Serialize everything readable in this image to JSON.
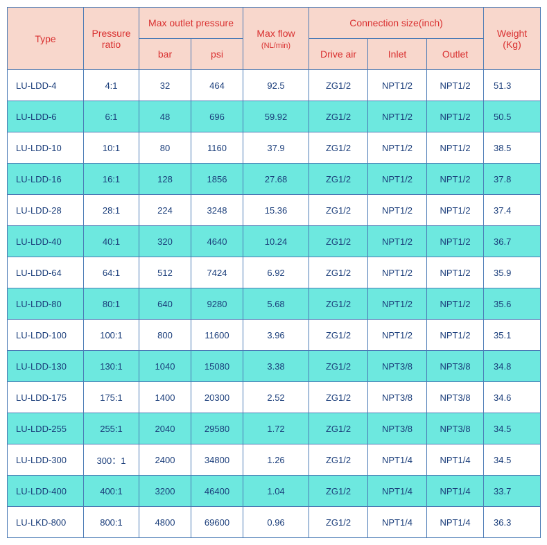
{
  "headers": {
    "type": "Type",
    "pressure_ratio": "Pressure ratio",
    "max_outlet_pressure": "Max outlet pressure",
    "bar": "bar",
    "psi": "psi",
    "max_flow": "Max flow",
    "max_flow_unit": "(NL/min)",
    "connection_size": "Connection size(inch)",
    "drive_air": "Drive air",
    "inlet": "Inlet",
    "outlet": "Outlet",
    "weight": "Weight",
    "weight_unit": "(Kg)"
  },
  "rows": [
    {
      "type": "LU-LDD-4",
      "ratio": "4:1",
      "bar": "32",
      "psi": "464",
      "flow": "92.5",
      "drive": "ZG1/2",
      "inlet": "NPT1/2",
      "outlet": "NPT1/2",
      "weight": "51.3"
    },
    {
      "type": "LU-LDD-6",
      "ratio": "6:1",
      "bar": "48",
      "psi": "696",
      "flow": "59.92",
      "drive": "ZG1/2",
      "inlet": "NPT1/2",
      "outlet": "NPT1/2",
      "weight": "50.5"
    },
    {
      "type": "LU-LDD-10",
      "ratio": "10:1",
      "bar": "80",
      "psi": "1160",
      "flow": "37.9",
      "drive": "ZG1/2",
      "inlet": "NPT1/2",
      "outlet": "NPT1/2",
      "weight": "38.5"
    },
    {
      "type": "LU-LDD-16",
      "ratio": "16:1",
      "bar": "128",
      "psi": "1856",
      "flow": "27.68",
      "drive": "ZG1/2",
      "inlet": "NPT1/2",
      "outlet": "NPT1/2",
      "weight": "37.8"
    },
    {
      "type": "LU-LDD-28",
      "ratio": "28:1",
      "bar": "224",
      "psi": "3248",
      "flow": "15.36",
      "drive": "ZG1/2",
      "inlet": "NPT1/2",
      "outlet": "NPT1/2",
      "weight": "37.4"
    },
    {
      "type": "LU-LDD-40",
      "ratio": "40:1",
      "bar": "320",
      "psi": "4640",
      "flow": "10.24",
      "drive": "ZG1/2",
      "inlet": "NPT1/2",
      "outlet": "NPT1/2",
      "weight": "36.7"
    },
    {
      "type": "LU-LDD-64",
      "ratio": "64:1",
      "bar": "512",
      "psi": "7424",
      "flow": "6.92",
      "drive": "ZG1/2",
      "inlet": "NPT1/2",
      "outlet": "NPT1/2",
      "weight": "35.9"
    },
    {
      "type": "LU-LDD-80",
      "ratio": "80:1",
      "bar": "640",
      "psi": "9280",
      "flow": "5.68",
      "drive": "ZG1/2",
      "inlet": "NPT1/2",
      "outlet": "NPT1/2",
      "weight": "35.6"
    },
    {
      "type": "LU-LDD-100",
      "ratio": "100:1",
      "bar": "800",
      "psi": "11600",
      "flow": "3.96",
      "drive": "ZG1/2",
      "inlet": "NPT1/2",
      "outlet": "NPT1/2",
      "weight": "35.1"
    },
    {
      "type": "LU-LDD-130",
      "ratio": "130:1",
      "bar": "1040",
      "psi": "15080",
      "flow": "3.38",
      "drive": "ZG1/2",
      "inlet": "NPT3/8",
      "outlet": "NPT3/8",
      "weight": "34.8"
    },
    {
      "type": "LU-LDD-175",
      "ratio": "175:1",
      "bar": "1400",
      "psi": "20300",
      "flow": "2.52",
      "drive": "ZG1/2",
      "inlet": "NPT3/8",
      "outlet": "NPT3/8",
      "weight": "34.6"
    },
    {
      "type": "LU-LDD-255",
      "ratio": "255:1",
      "bar": "2040",
      "psi": "29580",
      "flow": "1.72",
      "drive": "ZG1/2",
      "inlet": "NPT3/8",
      "outlet": "NPT3/8",
      "weight": "34.5"
    },
    {
      "type": "LU-LDD-300",
      "ratio": "300：1",
      "bar": "2400",
      "psi": "34800",
      "flow": "1.26",
      "drive": "ZG1/2",
      "inlet": "NPT1/4",
      "outlet": "NPT1/4",
      "weight": "34.5"
    },
    {
      "type": "LU-LDD-400",
      "ratio": "400:1",
      "bar": "3200",
      "psi": "46400",
      "flow": "1.04",
      "drive": "ZG1/2",
      "inlet": "NPT1/4",
      "outlet": "NPT1/4",
      "weight": "33.7"
    },
    {
      "type": "LU-LKD-800",
      "ratio": "800:1",
      "bar": "4800",
      "psi": "69600",
      "flow": "0.96",
      "drive": "ZG1/2",
      "inlet": "NPT1/4",
      "outlet": "NPT1/4",
      "weight": "36.3"
    }
  ],
  "colors": {
    "header_bg": "#f8d7cc",
    "header_text": "#d93030",
    "cell_text": "#1a3d7a",
    "border": "#4a7ab5",
    "row_bg": "#ffffff",
    "alt_row_bg": "#6de8df"
  }
}
